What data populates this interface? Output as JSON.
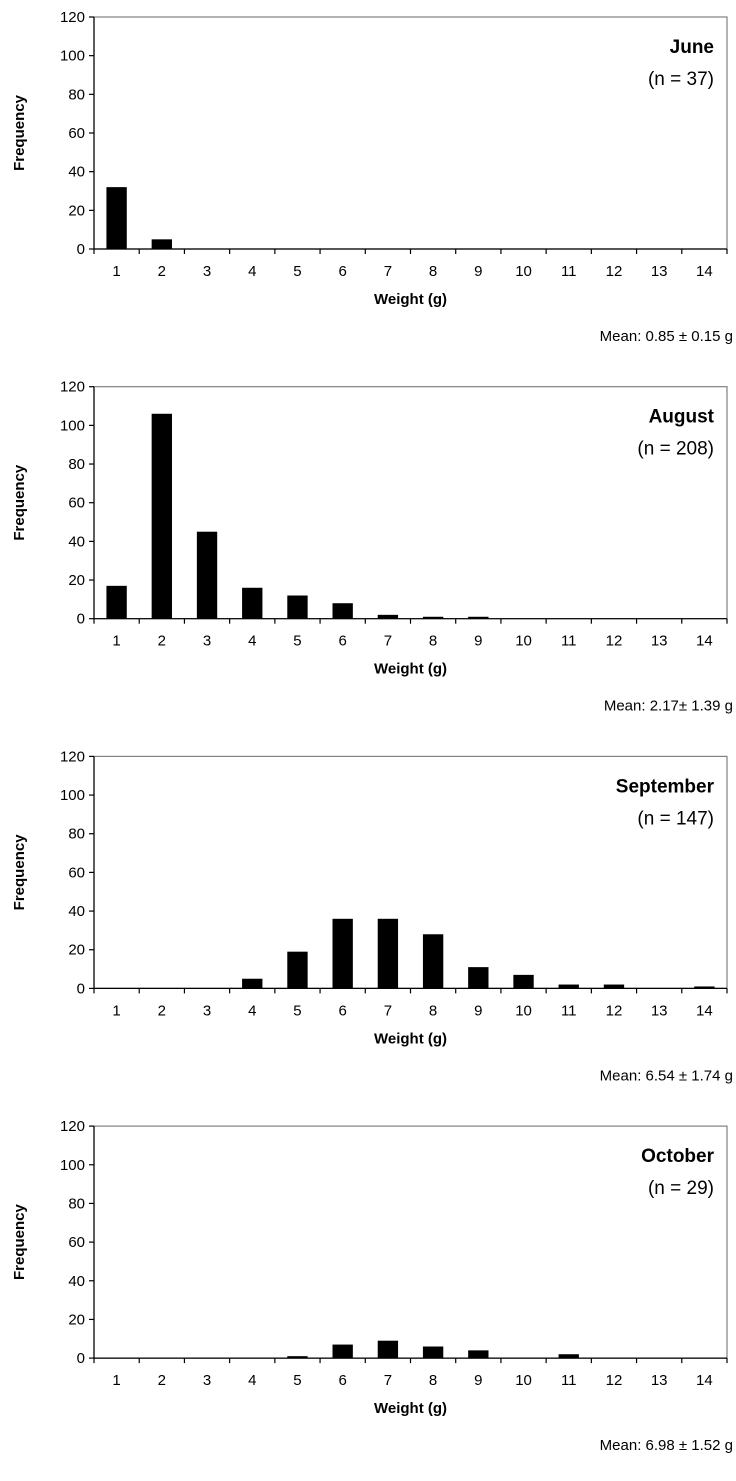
{
  "chart_data": [
    {
      "type": "bar",
      "title": "June",
      "subtitle": "(n = 37)",
      "xlabel": "Weight (g)",
      "ylabel": "Frequency",
      "ylim": [
        0,
        120
      ],
      "yticks": [
        "0",
        "20",
        "40",
        "60",
        "80",
        "100",
        "120"
      ],
      "categories": [
        "1",
        "2",
        "3",
        "4",
        "5",
        "6",
        "7",
        "8",
        "9",
        "10",
        "11",
        "12",
        "13",
        "14"
      ],
      "values": [
        32,
        5,
        0,
        0,
        0,
        0,
        0,
        0,
        0,
        0,
        0,
        0,
        0,
        0
      ],
      "annotation": "Mean: 0.85 ± 0.15 g",
      "grid": false,
      "bar_color": "#000000"
    },
    {
      "type": "bar",
      "title": "August",
      "subtitle": "(n = 208)",
      "xlabel": "Weight (g)",
      "ylabel": "Frequency",
      "ylim": [
        0,
        120
      ],
      "yticks": [
        "0",
        "20",
        "40",
        "60",
        "80",
        "100",
        "120"
      ],
      "categories": [
        "1",
        "2",
        "3",
        "4",
        "5",
        "6",
        "7",
        "8",
        "9",
        "10",
        "11",
        "12",
        "13",
        "14"
      ],
      "values": [
        17,
        106,
        45,
        16,
        12,
        8,
        2,
        1,
        1,
        0,
        0,
        0,
        0,
        0
      ],
      "annotation": "Mean: 2.17± 1.39 g",
      "grid": false,
      "bar_color": "#000000"
    },
    {
      "type": "bar",
      "title": "September",
      "subtitle": "(n = 147)",
      "xlabel": "Weight (g)",
      "ylabel": "Frequency",
      "ylim": [
        0,
        120
      ],
      "yticks": [
        "0",
        "20",
        "40",
        "60",
        "80",
        "100",
        "120"
      ],
      "categories": [
        "1",
        "2",
        "3",
        "4",
        "5",
        "6",
        "7",
        "8",
        "9",
        "10",
        "11",
        "12",
        "13",
        "14"
      ],
      "values": [
        0,
        0,
        0,
        5,
        19,
        36,
        36,
        28,
        11,
        7,
        2,
        2,
        0,
        1
      ],
      "annotation": "Mean: 6.54 ± 1.74 g",
      "grid": false,
      "bar_color": "#000000"
    },
    {
      "type": "bar",
      "title": "October",
      "subtitle": "(n = 29)",
      "xlabel": "Weight (g)",
      "ylabel": "Frequency",
      "ylim": [
        0,
        120
      ],
      "yticks": [
        "0",
        "20",
        "40",
        "60",
        "80",
        "100",
        "120"
      ],
      "categories": [
        "1",
        "2",
        "3",
        "4",
        "5",
        "6",
        "7",
        "8",
        "9",
        "10",
        "11",
        "12",
        "13",
        "14"
      ],
      "values": [
        0,
        0,
        0,
        0,
        1,
        7,
        9,
        6,
        4,
        0,
        2,
        0,
        0,
        0
      ],
      "annotation": "Mean: 6.98 ± 1.52 g",
      "grid": false,
      "bar_color": "#000000"
    }
  ]
}
